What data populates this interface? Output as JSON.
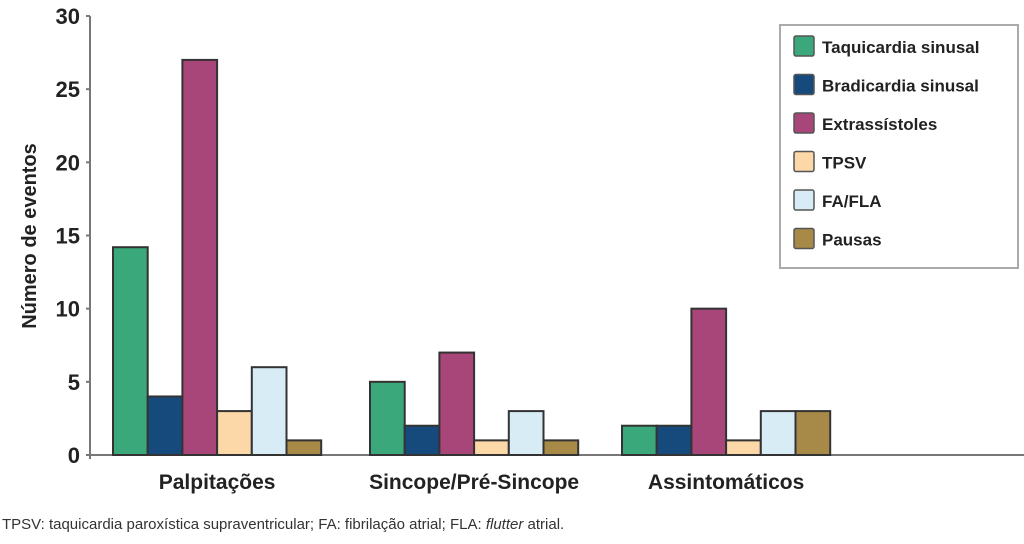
{
  "chart_data": {
    "type": "bar",
    "title": "",
    "xlabel": "",
    "ylabel": "Número de eventos",
    "ylim": [
      0,
      30
    ],
    "yticks": [
      0,
      5,
      10,
      15,
      20,
      25,
      30
    ],
    "categories": [
      "Palpitações",
      "Sincope/Pré-Sincope",
      "Assintomáticos"
    ],
    "legend_position": "top-right",
    "series": [
      {
        "name": "Taquicardia sinusal",
        "color": "#3aa87a",
        "values": [
          14.2,
          5,
          2
        ]
      },
      {
        "name": "Bradicardia sinusal",
        "color": "#174a7c",
        "values": [
          4,
          2,
          2
        ]
      },
      {
        "name": "Extrassístoles",
        "color": "#a8467a",
        "values": [
          27,
          7,
          10
        ]
      },
      {
        "name": "TPSV",
        "color": "#fcd7a8",
        "values": [
          3,
          1,
          1
        ]
      },
      {
        "name": "FA/FLA",
        "color": "#d8ecf6",
        "values": [
          6,
          3,
          3
        ]
      },
      {
        "name": "Pausas",
        "color": "#a88a48",
        "values": [
          1,
          1,
          3
        ]
      }
    ]
  },
  "caption": {
    "text1": "TPSV: taquicardia paroxística supraventricular; FA: fibrilação atrial; FLA: ",
    "italic": "flutter",
    "text2": " atrial."
  }
}
